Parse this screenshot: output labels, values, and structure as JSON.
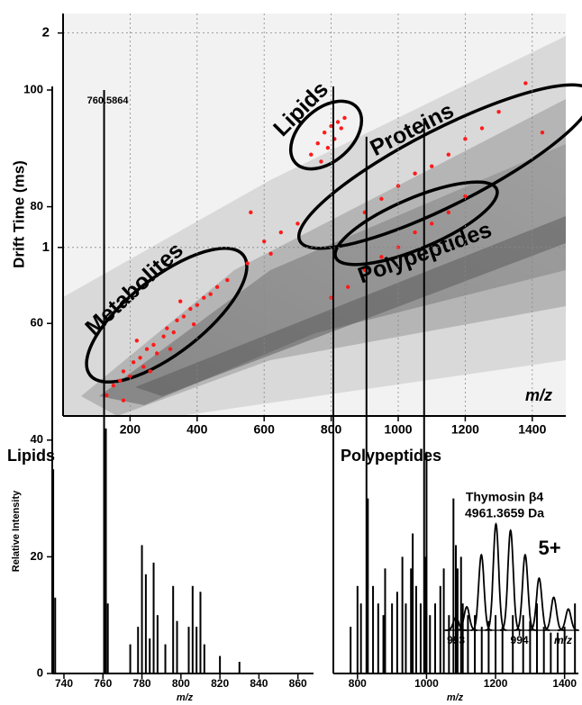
{
  "chart_data": [
    {
      "type": "scatter",
      "color": "#ff1a1a",
      "ylog": true,
      "grid": true,
      "xlabel": "m/z",
      "ylabel": "Drift Time (ms)",
      "annotations": [
        "Metabolites",
        "Lipids",
        "Proteins",
        "Polypeptides"
      ],
      "xlim": [
        0,
        1500
      ],
      "xticks": [
        200,
        400,
        600,
        800,
        1000,
        1200,
        1400
      ],
      "ylim": [
        0.58,
        2.13
      ],
      "yticks": [
        1,
        2
      ],
      "x": [
        130,
        150,
        170,
        180,
        200,
        210,
        230,
        240,
        250,
        270,
        280,
        300,
        310,
        330,
        340,
        360,
        380,
        400,
        420,
        440,
        460,
        490,
        220,
        260,
        320,
        350,
        180,
        390,
        740,
        760,
        780,
        800,
        820,
        840,
        790,
        810,
        830,
        770,
        550,
        600,
        650,
        700,
        620,
        560,
        900,
        950,
        1000,
        1050,
        1100,
        1150,
        1200,
        1250,
        1300,
        1380,
        1430,
        800,
        850,
        900,
        950,
        1000,
        1050,
        1100,
        1150,
        1200
      ],
      "values": [
        0.62,
        0.64,
        0.65,
        0.67,
        0.66,
        0.69,
        0.7,
        0.68,
        0.72,
        0.73,
        0.71,
        0.75,
        0.77,
        0.76,
        0.79,
        0.8,
        0.82,
        0.83,
        0.85,
        0.86,
        0.88,
        0.9,
        0.74,
        0.67,
        0.72,
        0.84,
        0.61,
        0.78,
        1.35,
        1.4,
        1.45,
        1.48,
        1.5,
        1.52,
        1.38,
        1.42,
        1.47,
        1.32,
        0.95,
        1.02,
        1.05,
        1.08,
        0.98,
        1.12,
        1.12,
        1.17,
        1.22,
        1.27,
        1.3,
        1.35,
        1.42,
        1.47,
        1.55,
        1.7,
        1.45,
        0.85,
        0.88,
        0.93,
        0.97,
        1.0,
        1.05,
        1.08,
        1.12,
        1.18
      ]
    },
    {
      "type": "bar",
      "title": "Lipids",
      "color": "#000000",
      "xlabel": "m/z",
      "ylabel": "Relative Intensity",
      "xlim": [
        734,
        868
      ],
      "xticks": [
        740,
        760,
        780,
        800,
        820,
        840,
        860
      ],
      "ylim": [
        0,
        100
      ],
      "yticks": [
        0,
        20,
        40,
        60,
        80,
        100
      ],
      "x": [
        734.5,
        735.5,
        760.5864,
        761.5,
        762.5,
        774,
        778,
        780,
        782,
        784,
        786,
        788,
        792,
        796,
        798,
        804,
        806,
        808,
        810,
        812,
        820,
        830
      ],
      "values": [
        35,
        13,
        100,
        42,
        12,
        5,
        8,
        22,
        17,
        6,
        19,
        10,
        5,
        15,
        9,
        8,
        15,
        8,
        14,
        5,
        3,
        2
      ]
    },
    {
      "type": "bar",
      "title": "Polypeptides",
      "color": "#000000",
      "xlabel": "m/z",
      "xlim": [
        730,
        1440
      ],
      "xticks": [
        800,
        1000,
        1200,
        1400
      ],
      "ylim": [
        0,
        100
      ],
      "x": [
        780,
        800,
        810,
        826,
        830,
        845,
        860,
        875,
        880,
        900,
        915,
        930,
        940,
        955,
        960,
        970,
        983,
        993,
        996,
        1000,
        1010,
        1025,
        1040,
        1050,
        1065,
        1078,
        1085,
        1090,
        1100,
        1105,
        1120,
        1140,
        1160,
        1180,
        1200,
        1220,
        1250,
        1280,
        1300,
        1320,
        1340,
        1360,
        1380,
        1400,
        1430
      ],
      "values": [
        8,
        15,
        12,
        92,
        30,
        15,
        12,
        10,
        18,
        12,
        14,
        20,
        12,
        18,
        24,
        15,
        12,
        95,
        20,
        38,
        10,
        12,
        15,
        18,
        10,
        30,
        22,
        18,
        20,
        12,
        10,
        10,
        8,
        9,
        10,
        8,
        10,
        10,
        9,
        12,
        8,
        7,
        7,
        8,
        12
      ]
    },
    {
      "type": "profile",
      "title": "Thymosin β4",
      "subtitle": "4961.3659 Da",
      "annotation": "5+",
      "color": "#000000",
      "xlabel": "m/z",
      "xlim": [
        992.8,
        994.9
      ],
      "xticks": [
        993,
        994
      ],
      "ylim": [
        0,
        100
      ],
      "x": [
        993.0,
        993.17,
        993.4,
        993.63,
        993.86,
        994.09,
        994.31,
        994.54,
        994.77
      ],
      "values": [
        12,
        22,
        71,
        100,
        94,
        71,
        49,
        31,
        20
      ]
    }
  ]
}
